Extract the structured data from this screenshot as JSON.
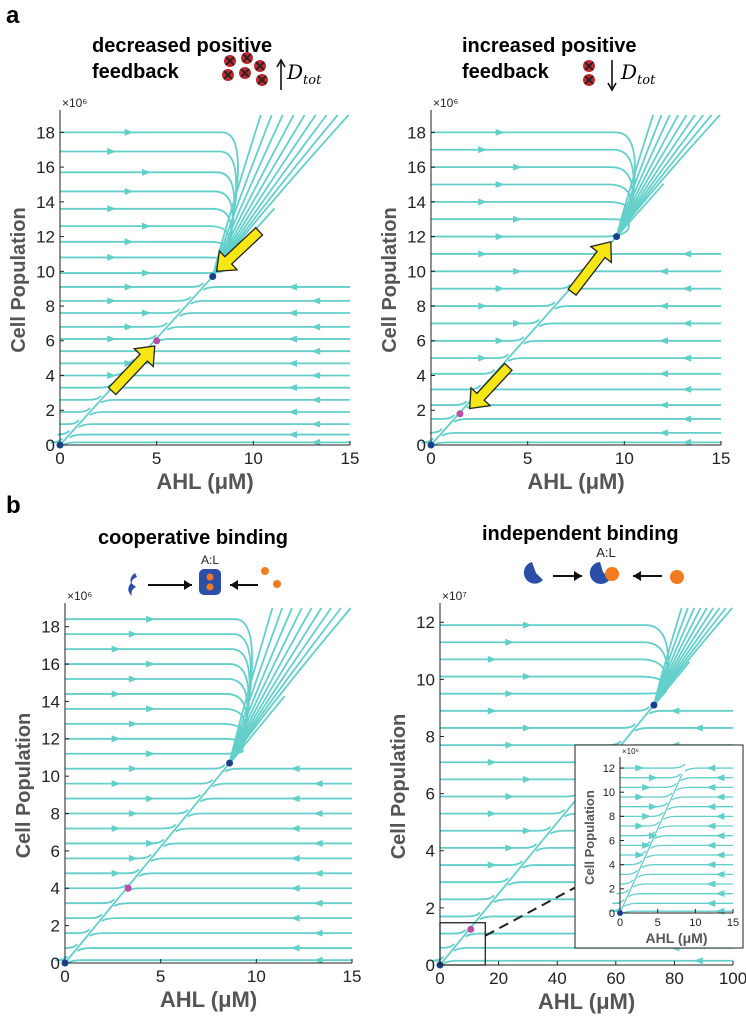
{
  "panels": {
    "a": "a",
    "b": "b"
  },
  "labels": {
    "a_left_title_1": "decreased positive",
    "a_left_title_2": "feedback",
    "a_right_title_1": "increased positive",
    "a_right_title_2": "feedback",
    "d_tot_symbol": "D",
    "d_tot_sub": "tot",
    "b_left_title": "cooperative binding",
    "b_right_title": "independent binding",
    "complex_label": "A:L"
  },
  "colors": {
    "stream": "#63cfcb",
    "stable_point": "#1c3f8c",
    "unstable_point": "#b84fa6",
    "arrow_fill": "#f6e614",
    "x_marker": "#c0272d",
    "receptor": "#2b4fa6",
    "ligand": "#f47a20"
  },
  "chart_data": [
    {
      "id": "a-left",
      "type": "streamplot",
      "xlabel": "AHL (μM)",
      "ylabel": "Cell Population",
      "exponent": "×10⁶",
      "xlim": [
        0,
        15
      ],
      "ylim": [
        0,
        19
      ],
      "xticks": [
        0,
        5,
        10,
        15
      ],
      "yticks": [
        0,
        2,
        4,
        6,
        8,
        10,
        12,
        14,
        16,
        18
      ],
      "fixed_points": [
        {
          "x": 0,
          "y": 0,
          "kind": "stable"
        },
        {
          "x": 5.0,
          "y": 6.0,
          "kind": "unstable"
        },
        {
          "x": 7.9,
          "y": 9.7,
          "kind": "stable"
        }
      ],
      "arrows": [
        {
          "from": [
            2.7,
            3.1
          ],
          "to": [
            4.9,
            5.7
          ]
        },
        {
          "from": [
            10.3,
            12.3
          ],
          "to": [
            8.1,
            10.0
          ]
        }
      ]
    },
    {
      "id": "a-right",
      "type": "streamplot",
      "xlabel": "AHL (μM)",
      "ylabel": "Cell Population",
      "exponent": "×10⁶",
      "xlim": [
        0,
        15
      ],
      "ylim": [
        0,
        19
      ],
      "xticks": [
        0,
        5,
        10,
        15
      ],
      "yticks": [
        0,
        2,
        4,
        6,
        8,
        10,
        12,
        14,
        16,
        18
      ],
      "fixed_points": [
        {
          "x": 0,
          "y": 0,
          "kind": "stable"
        },
        {
          "x": 1.5,
          "y": 1.8,
          "kind": "unstable"
        },
        {
          "x": 9.6,
          "y": 12.0,
          "kind": "stable"
        }
      ],
      "arrows": [
        {
          "from": [
            7.3,
            8.8
          ],
          "to": [
            9.3,
            11.7
          ]
        },
        {
          "from": [
            4.0,
            4.5
          ],
          "to": [
            2.0,
            2.1
          ]
        }
      ]
    },
    {
      "id": "b-left",
      "type": "streamplot",
      "xlabel": "AHL (μM)",
      "ylabel": "Cell Population",
      "exponent": "×10⁶",
      "xlim": [
        0,
        15
      ],
      "ylim": [
        0,
        19
      ],
      "xticks": [
        0,
        5,
        10,
        15
      ],
      "yticks": [
        0,
        2,
        4,
        6,
        8,
        10,
        12,
        14,
        16,
        18
      ],
      "fixed_points": [
        {
          "x": 0,
          "y": 0,
          "kind": "stable"
        },
        {
          "x": 3.3,
          "y": 4.0,
          "kind": "unstable"
        },
        {
          "x": 8.6,
          "y": 10.7,
          "kind": "stable"
        }
      ]
    },
    {
      "id": "b-right",
      "type": "streamplot",
      "xlabel": "AHL (μM)",
      "ylabel": "Cell Population",
      "exponent": "×10⁷",
      "xlim": [
        0,
        100
      ],
      "ylim": [
        0,
        12.5
      ],
      "xticks": [
        0,
        20,
        40,
        60,
        80,
        100
      ],
      "yticks": [
        0,
        2,
        4,
        6,
        8,
        10,
        12
      ],
      "fixed_points": [
        {
          "x": 0,
          "y": 0,
          "kind": "stable"
        },
        {
          "x": 10.5,
          "y": 1.25,
          "kind": "unstable"
        },
        {
          "x": 73,
          "y": 9.1,
          "kind": "stable"
        }
      ],
      "zoom_box": {
        "x": [
          0,
          10
        ],
        "y": [
          0,
          1.2
        ]
      }
    },
    {
      "id": "b-right-inset",
      "type": "streamplot",
      "xlabel": "AHL (μM)",
      "ylabel": "Cell Population",
      "exponent": "×10⁶",
      "xlim": [
        0,
        15
      ],
      "ylim": [
        0,
        12.5
      ],
      "xticks": [
        0,
        5,
        10,
        15
      ],
      "yticks": [
        0,
        2,
        4,
        6,
        8,
        10,
        12
      ],
      "fixed_points": [
        {
          "x": 0,
          "y": 0,
          "kind": "stable"
        }
      ]
    }
  ]
}
